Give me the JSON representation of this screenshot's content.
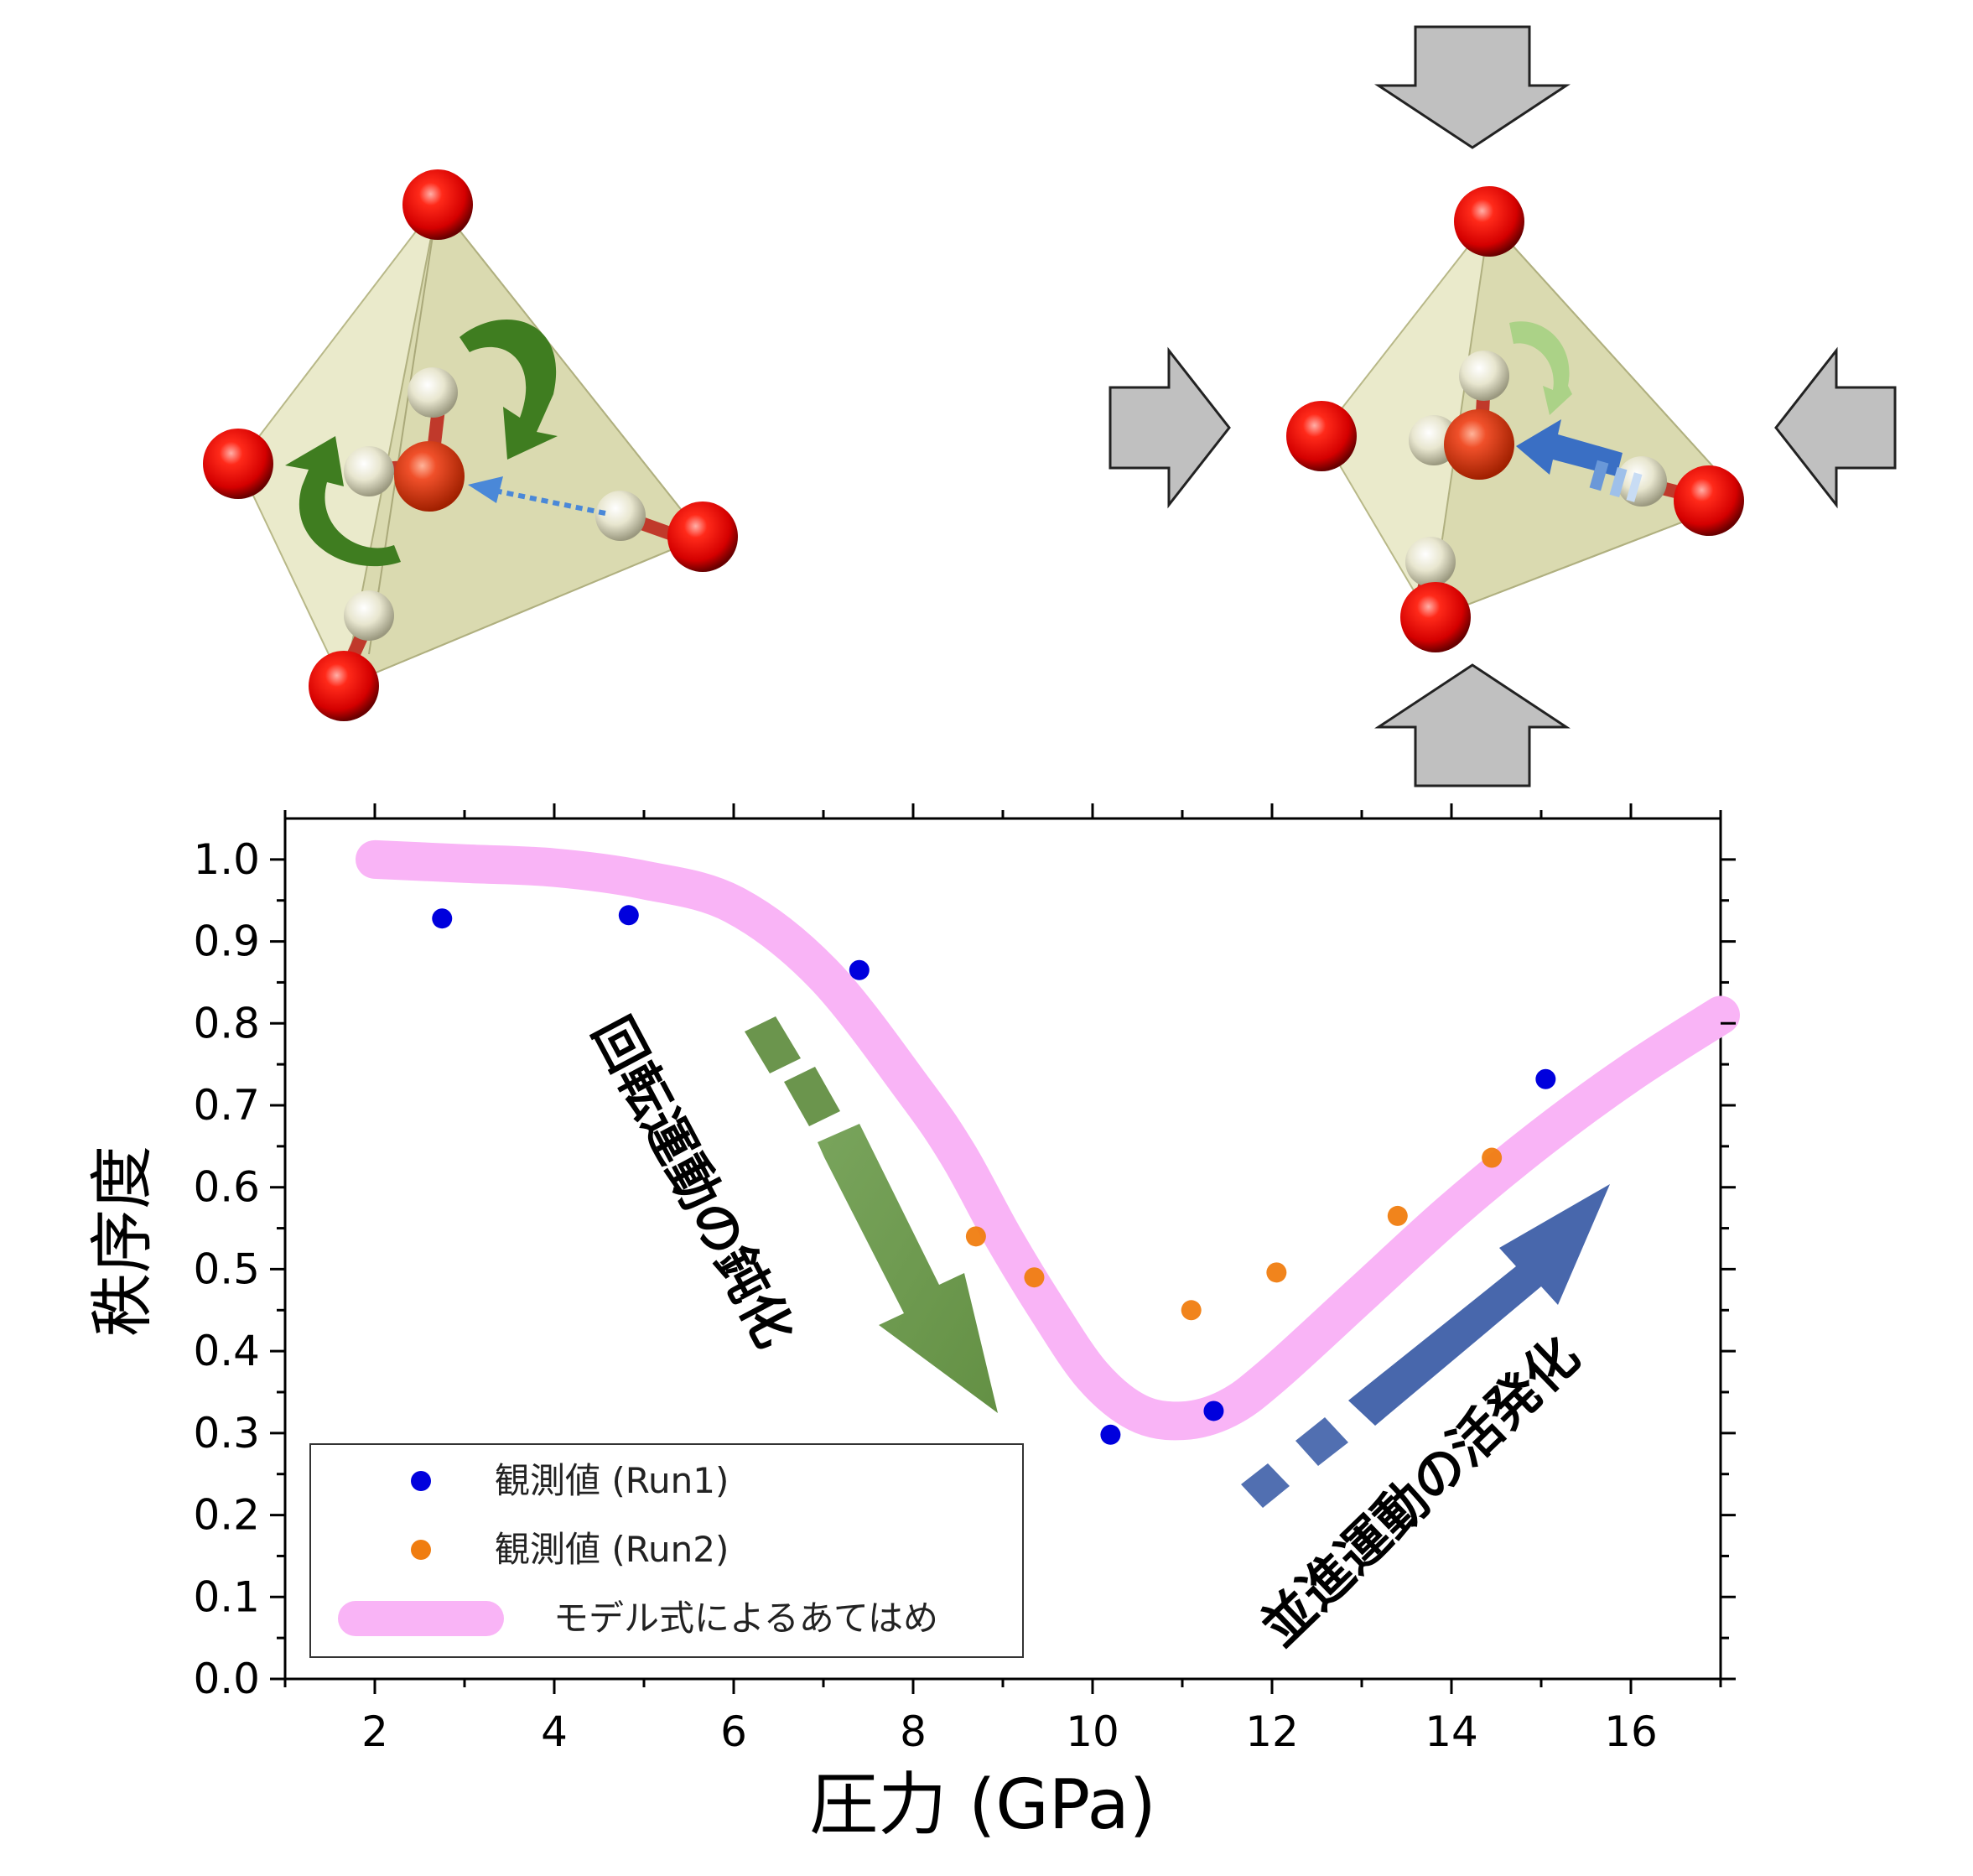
{
  "chart_data": {
    "type": "scatter",
    "title": "",
    "xlabel": "圧力 (GPa)",
    "ylabel": "秩序度",
    "xlim": [
      1,
      17
    ],
    "ylim": [
      0,
      1.05
    ],
    "x_ticks": [
      2,
      4,
      6,
      8,
      10,
      12,
      14,
      16
    ],
    "y_ticks": [
      0.0,
      0.1,
      0.2,
      0.3,
      0.4,
      0.5,
      0.6,
      0.7,
      0.8,
      0.9,
      1.0
    ],
    "grid": false,
    "legend_position": "bottom-left",
    "series": [
      {
        "name": "観測値 (Run1)",
        "kind": "scatter",
        "color": "#0000dd",
        "x": [
          2.75,
          4.83,
          7.4,
          10.2,
          11.35,
          15.05
        ],
        "y": [
          0.928,
          0.932,
          0.865,
          0.298,
          0.327,
          0.732
        ]
      },
      {
        "name": "観測値 (Run2)",
        "kind": "scatter",
        "color": "#f07d10",
        "x": [
          8.7,
          9.35,
          11.1,
          12.05,
          13.4,
          14.45
        ],
        "y": [
          0.54,
          0.49,
          0.45,
          0.496,
          0.565,
          0.636
        ]
      },
      {
        "name": "モデル式によるあてはめ",
        "kind": "line",
        "color": "#f9b4f6",
        "x": [
          2.0,
          3.0,
          4.0,
          5.0,
          6.0,
          7.0,
          8.0,
          8.5,
          9.0,
          9.5,
          10.0,
          10.5,
          11.0,
          11.5,
          12.0,
          13.0,
          14.0,
          15.0,
          16.0,
          17.0
        ],
        "y": [
          1.0,
          0.995,
          0.99,
          0.975,
          0.945,
          0.86,
          0.72,
          0.64,
          0.54,
          0.45,
          0.37,
          0.325,
          0.315,
          0.33,
          0.37,
          0.47,
          0.57,
          0.66,
          0.74,
          0.81
        ]
      }
    ],
    "annotations": [
      {
        "text": "回転運動の鈍化",
        "color": "#4f8a2e"
      },
      {
        "text": "並進運動の活発化",
        "color": "#2e6db0"
      }
    ]
  },
  "illustrations": {
    "left": "tetrahedral-water-cluster-rotation",
    "right": "compressed-water-cluster-translation",
    "atom_colors": {
      "oxygen": "#e21212",
      "hydrogen": "#ece9d3"
    },
    "rotation_arrow_color": "#3f7d20",
    "translation_arrow_color": "#3a6fc4",
    "compression_arrow_color": "#c0c0c0"
  }
}
